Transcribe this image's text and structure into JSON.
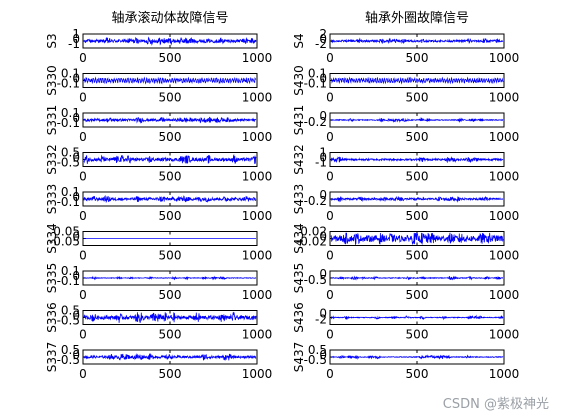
{
  "watermark": "CSDN @紫极神光",
  "chart_data": [
    {
      "type": "line",
      "title": "轴承滚动体故障信号",
      "x_range": [
        0,
        1000
      ],
      "x_ticks": [
        "0",
        "500",
        "1000"
      ],
      "series_color": "#0000ff",
      "panels": [
        {
          "label": "S3",
          "ylim": [
            -1,
            1
          ],
          "yticks": [
            "1",
            "0",
            "-1"
          ],
          "tick_row": false,
          "style": "dense",
          "amp": 0.45
        },
        {
          "label": "S330",
          "ylim": [
            -0.1,
            0.1
          ],
          "yticks": [
            "0.1",
            "0",
            "-0.1"
          ],
          "tick_row": true,
          "style": "smooth",
          "amp": 0.55
        },
        {
          "label": "S331",
          "ylim": [
            -0.1,
            0.1
          ],
          "yticks": [
            "0.1",
            "0",
            "-0.1"
          ],
          "tick_row": true,
          "style": "dense",
          "amp": 0.35
        },
        {
          "label": "S332",
          "ylim": [
            -0.5,
            0.5
          ],
          "yticks": [
            "0.5",
            "0",
            "-0.5"
          ],
          "tick_row": true,
          "style": "bursty",
          "amp": 0.6
        },
        {
          "label": "S333",
          "ylim": [
            -0.1,
            0.1
          ],
          "yticks": [
            "0.1",
            "0",
            "-0.1"
          ],
          "tick_row": true,
          "style": "dense",
          "amp": 0.4
        },
        {
          "label": "S334",
          "ylim": [
            -0.05,
            0.05
          ],
          "yticks": [
            "0.05",
            "0",
            "-0.05"
          ],
          "tick_row": true,
          "style": "flat",
          "amp": 0.05
        },
        {
          "label": "S335",
          "ylim": [
            -0.1,
            0.1
          ],
          "yticks": [
            "0.1",
            "0",
            "-0.1"
          ],
          "tick_row": true,
          "style": "sparse",
          "amp": 0.2
        },
        {
          "label": "S336",
          "ylim": [
            -0.5,
            0.5
          ],
          "yticks": [
            "0.5",
            "0",
            "-0.5"
          ],
          "tick_row": true,
          "style": "bursty",
          "amp": 0.7
        },
        {
          "label": "S337",
          "ylim": [
            -0.5,
            0.5
          ],
          "yticks": [
            "0.5",
            "0",
            "-0.5"
          ],
          "tick_row": true,
          "style": "bursty",
          "amp": 0.45
        }
      ]
    },
    {
      "type": "line",
      "title": "轴承外圈故障信号",
      "x_range": [
        0,
        1000
      ],
      "x_ticks": [
        "0",
        "500",
        "1000"
      ],
      "series_color": "#0000ff",
      "panels": [
        {
          "label": "S4",
          "ylim": [
            -2,
            2
          ],
          "yticks": [
            "2",
            "0",
            "-2"
          ],
          "tick_row": false,
          "style": "bursty",
          "amp": 0.35
        },
        {
          "label": "S430",
          "ylim": [
            -0.1,
            0.1
          ],
          "yticks": [
            "0.1",
            "0",
            "-0.1"
          ],
          "tick_row": true,
          "style": "smooth",
          "amp": 0.55
        },
        {
          "label": "S431",
          "ylim": [
            -0.2,
            0.2
          ],
          "yticks": [
            "0",
            "-0.2"
          ],
          "tick_row": true,
          "style": "sparse",
          "amp": 0.3
        },
        {
          "label": "S432",
          "ylim": [
            -1,
            1
          ],
          "yticks": [
            "1",
            "0",
            "-1"
          ],
          "tick_row": true,
          "style": "bursty",
          "amp": 0.35
        },
        {
          "label": "S433",
          "ylim": [
            -0.2,
            0.2
          ],
          "yticks": [
            "0",
            "-0.2"
          ],
          "tick_row": true,
          "style": "bursty",
          "amp": 0.35
        },
        {
          "label": "S434",
          "ylim": [
            -0.02,
            0.02
          ],
          "yticks": [
            "0.02",
            "0",
            "-0.02"
          ],
          "tick_row": true,
          "style": "heavy",
          "amp": 0.75
        },
        {
          "label": "S435",
          "ylim": [
            -0.5,
            0.5
          ],
          "yticks": [
            "0",
            "-0.5"
          ],
          "tick_row": true,
          "style": "sparse",
          "amp": 0.25
        },
        {
          "label": "S436",
          "ylim": [
            -2,
            2
          ],
          "yticks": [
            "0",
            "-2"
          ],
          "tick_row": true,
          "style": "sparse",
          "amp": 0.25
        },
        {
          "label": "S437",
          "ylim": [
            -0.5,
            0.5
          ],
          "yticks": [
            "0.5",
            "0",
            "-0.5"
          ],
          "tick_row": true,
          "style": "sparse",
          "amp": 0.25
        }
      ]
    }
  ]
}
